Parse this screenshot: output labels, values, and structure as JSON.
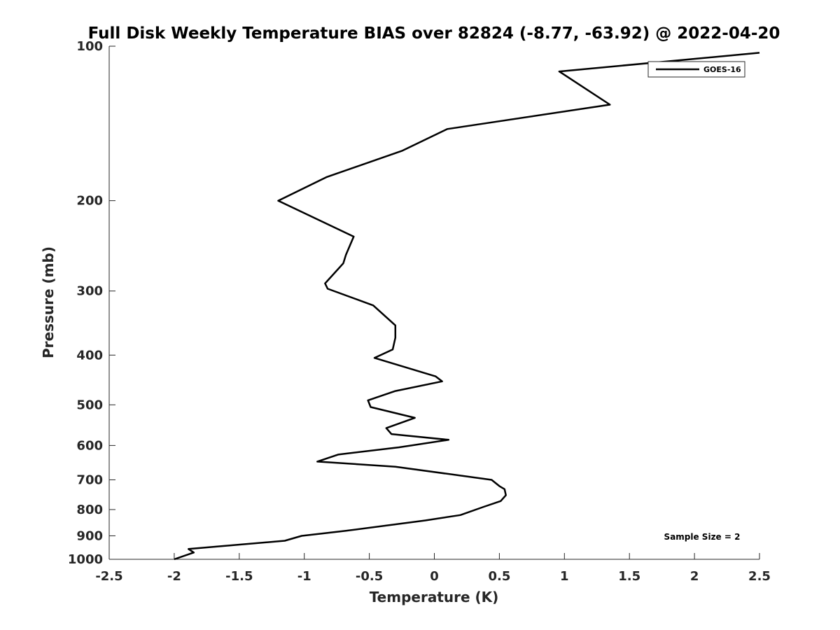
{
  "chart_data": {
    "type": "line",
    "title": "Full Disk Weekly Temperature BIAS over 82824 (-8.77, -63.92) @ 2022-04-20",
    "xlabel": "Temperature (K)",
    "ylabel": "Pressure (mb)",
    "xlim": [
      -2.5,
      2.5
    ],
    "ylim": [
      1000,
      100
    ],
    "y_scale": "log",
    "y_reversed": true,
    "x_ticks": [
      -2.5,
      -2,
      -1.5,
      -1,
      -0.5,
      0,
      0.5,
      1,
      1.5,
      2,
      2.5
    ],
    "x_tick_labels": [
      "-2.5",
      "-2",
      "-1.5",
      "-1",
      "-0.5",
      "0",
      "0.5",
      "1",
      "1.5",
      "2",
      "2.5"
    ],
    "y_ticks": [
      100,
      200,
      300,
      400,
      500,
      600,
      700,
      800,
      900,
      1000
    ],
    "y_tick_labels": [
      "100",
      "200",
      "300",
      "400",
      "500",
      "600",
      "700",
      "800",
      "900",
      "1000"
    ],
    "grid": false,
    "legend": {
      "position": "top-right",
      "entries": [
        "GOES-16"
      ]
    },
    "annotation": "Sample Size = 2",
    "series": [
      {
        "name": "GOES-16",
        "color": "#000000",
        "x": [
          -2.0,
          -1.85,
          -1.89,
          -1.15,
          -1.02,
          -0.68,
          -0.07,
          0.2,
          0.38,
          0.51,
          0.55,
          0.54,
          0.5,
          0.44,
          -0.3,
          -0.9,
          -0.74,
          -0.27,
          0.11,
          -0.33,
          -0.37,
          -0.15,
          -0.49,
          -0.51,
          -0.3,
          0.06,
          0.01,
          -0.46,
          -0.32,
          -0.3,
          -0.3,
          -0.47,
          -0.82,
          -0.84,
          -0.7,
          -0.68,
          -0.62,
          -1.2,
          -0.83,
          -0.25,
          0.1,
          1.35,
          0.96,
          2.5
        ],
        "y": [
          1000,
          970,
          955,
          920,
          900,
          880,
          840,
          820,
          790,
          770,
          750,
          730,
          720,
          700,
          660,
          645,
          625,
          605,
          585,
          570,
          555,
          530,
          505,
          490,
          470,
          450,
          440,
          405,
          390,
          370,
          350,
          320,
          297,
          290,
          265,
          255,
          235,
          200,
          180,
          160,
          145,
          130,
          112,
          103
        ]
      }
    ]
  }
}
